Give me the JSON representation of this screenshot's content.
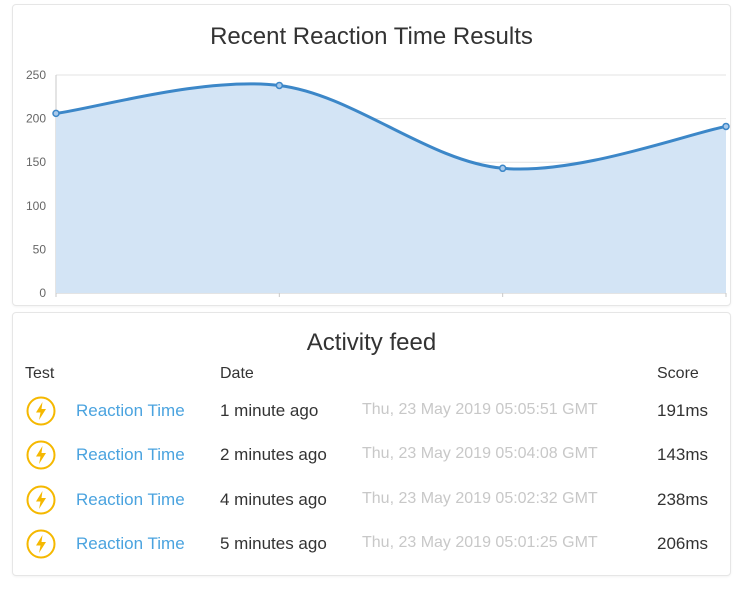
{
  "chart_card": {
    "title": "Recent Reaction Time Results"
  },
  "chart_data": {
    "type": "area",
    "title": "Recent Reaction Time Results",
    "x": [
      1,
      2,
      3,
      4
    ],
    "values": [
      206,
      238,
      143,
      191
    ],
    "ylim": [
      0,
      250
    ],
    "yticks": [
      0,
      50,
      100,
      150,
      200,
      250
    ],
    "grid": true,
    "colors": {
      "line": "#3c87c8",
      "fill": "#d3e4f5",
      "grid": "#e3e3e3"
    }
  },
  "feed": {
    "title": "Activity feed",
    "columns": {
      "test": "Test",
      "date": "Date",
      "score": "Score"
    },
    "icon": "lightning-bolt-icon",
    "accent_color": "#f5b800",
    "rows": [
      {
        "test": "Reaction Time",
        "relative": "1 minute ago",
        "absolute": "Thu, 23 May 2019 05:05:51 GMT",
        "score": "191ms"
      },
      {
        "test": "Reaction Time",
        "relative": "2 minutes ago",
        "absolute": "Thu, 23 May 2019 05:04:08 GMT",
        "score": "143ms"
      },
      {
        "test": "Reaction Time",
        "relative": "4 minutes ago",
        "absolute": "Thu, 23 May 2019 05:02:32 GMT",
        "score": "238ms"
      },
      {
        "test": "Reaction Time",
        "relative": "5 minutes ago",
        "absolute": "Thu, 23 May 2019 05:01:25 GMT",
        "score": "206ms"
      }
    ]
  }
}
